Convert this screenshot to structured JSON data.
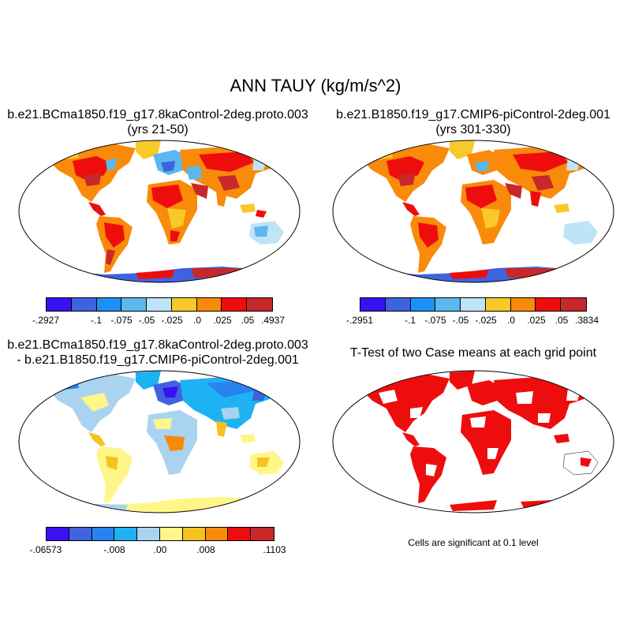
{
  "page": {
    "title": "ANN TAUY (kg/m/s^2)"
  },
  "panels": [
    {
      "title_line1": "b.e21.BCma1850.f19_g17.8kaControl-2deg.proto.003",
      "title_line2": "(yrs 21-50)",
      "colorbar": {
        "colors": [
          "#3a10f5",
          "#3f63e0",
          "#1e90f5",
          "#5bb8ee",
          "#bfe3f7",
          "#f9c92a",
          "#f98a0a",
          "#ee0d0d",
          "#c8282a"
        ],
        "labels": [
          "-.2927",
          "-.1",
          "-.075",
          "-.05",
          "-.025",
          ".0",
          ".025",
          ".05",
          ".4937"
        ]
      }
    },
    {
      "title_line1": "b.e21.B1850.f19_g17.CMIP6-piControl-2deg.001",
      "title_line2": "(yrs 301-330)",
      "colorbar": {
        "colors": [
          "#3a10f5",
          "#3f63e0",
          "#1e90f5",
          "#5bb8ee",
          "#bfe3f7",
          "#f9c92a",
          "#f98a0a",
          "#ee0d0d",
          "#c8282a"
        ],
        "labels": [
          "-.2951",
          "-.1",
          "-.075",
          "-.05",
          "-.025",
          ".0",
          ".025",
          ".05",
          ".3834"
        ]
      }
    },
    {
      "title_line1": "b.e21.BCma1850.f19_g17.8kaControl-2deg.proto.003",
      "title_line2": "- b.e21.B1850.f19_g17.CMIP6-piControl-2deg.001",
      "colorbar": {
        "colors": [
          "#3a10f5",
          "#3f63e0",
          "#2a82f0",
          "#1eb2f2",
          "#a9d3f0",
          "#fff68a",
          "#f7c21f",
          "#f88a0a",
          "#ee0d0d",
          "#c8282a"
        ],
        "labels": [
          "-.06573",
          "-.008",
          ".00",
          ".008",
          ".1103"
        ]
      }
    },
    {
      "title_line1": "T-Test of two Case means at each grid point",
      "note": "Cells are significant at 0.1 level"
    }
  ]
}
